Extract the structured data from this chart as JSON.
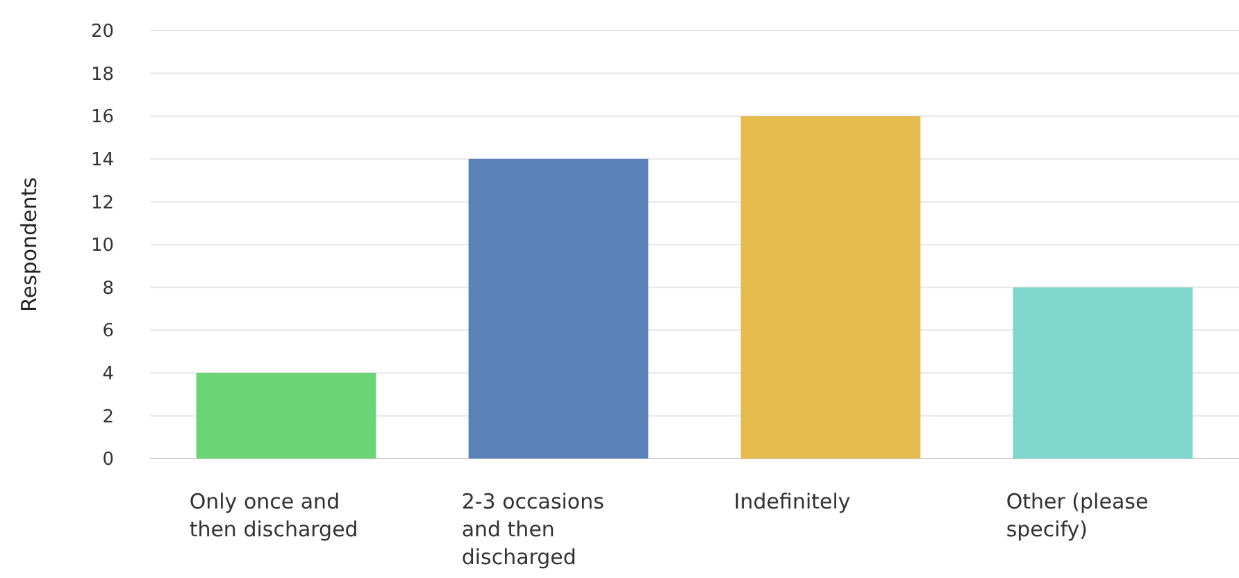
{
  "chart_data": {
    "type": "bar",
    "ylabel": "Respondents",
    "categories": [
      "Only once and then discharged",
      "2-3 occasions and then discharged",
      "Indefinitely",
      "Other (please specify)"
    ],
    "values": [
      4,
      14,
      16,
      8
    ],
    "colors": [
      "#6bd474",
      "#5a82b8",
      "#e4bb4c",
      "#7fd6cc"
    ],
    "ylim": [
      0,
      20
    ],
    "yticks": [
      0,
      2,
      4,
      6,
      8,
      10,
      12,
      14,
      16,
      18,
      20
    ],
    "grid": "y"
  }
}
